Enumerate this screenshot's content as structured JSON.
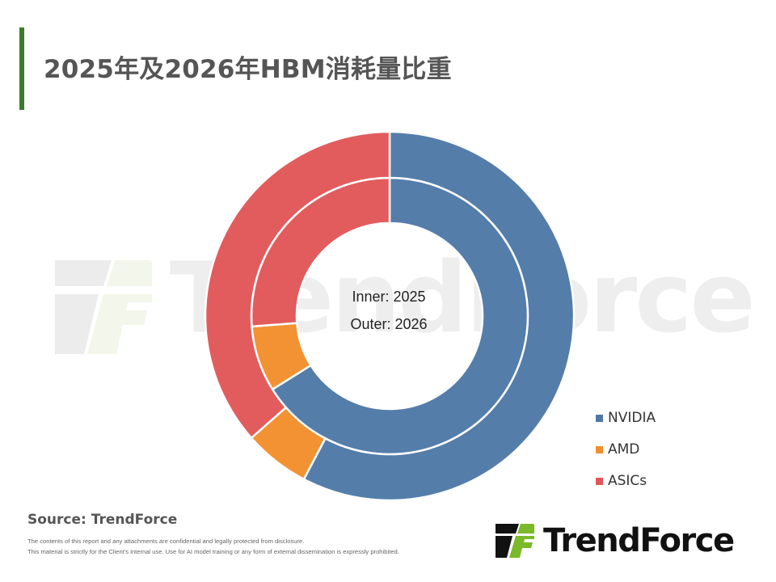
{
  "header": {
    "title": "2025年及2026年HBM消耗量比重",
    "accent_color": "#3e7a2a"
  },
  "watermark": {
    "text": "TrendForce"
  },
  "chart_data": {
    "type": "donut",
    "title": "2025年及2026年HBM消耗量比重",
    "center_labels": [
      "Inner: 2025",
      "Outer: 2026"
    ],
    "categories": [
      "NVIDIA",
      "AMD",
      "ASICs"
    ],
    "colors": [
      "#4e79a7",
      "#f28e2b",
      "#e15759"
    ],
    "series": [
      {
        "name": "2025",
        "ring": "inner",
        "values": [
          66.1,
          7.7,
          26.2
        ]
      },
      {
        "name": "2026",
        "ring": "outer",
        "values": [
          57.7,
          5.8,
          36.5
        ]
      }
    ],
    "legend_position": "right-bottom",
    "unit": "%"
  },
  "legend": {
    "items": [
      {
        "label": "NVIDIA",
        "color": "#4e79a7"
      },
      {
        "label": "AMD",
        "color": "#f28e2b"
      },
      {
        "label": "ASICs",
        "color": "#e15759"
      }
    ]
  },
  "footer": {
    "source": "Source: TrendForce",
    "disclaimer_line1": "The contents of this report and any attachments are confidential and legally protected from disclosure.",
    "disclaimer_line2": "This material is strictly for the Client's internal use. Use for AI model training or any form of external dissemination is expressly prohibited.",
    "logo_text": "TrendForce",
    "logo_colors": {
      "dark": "#111111",
      "green": "#7ab929"
    }
  }
}
